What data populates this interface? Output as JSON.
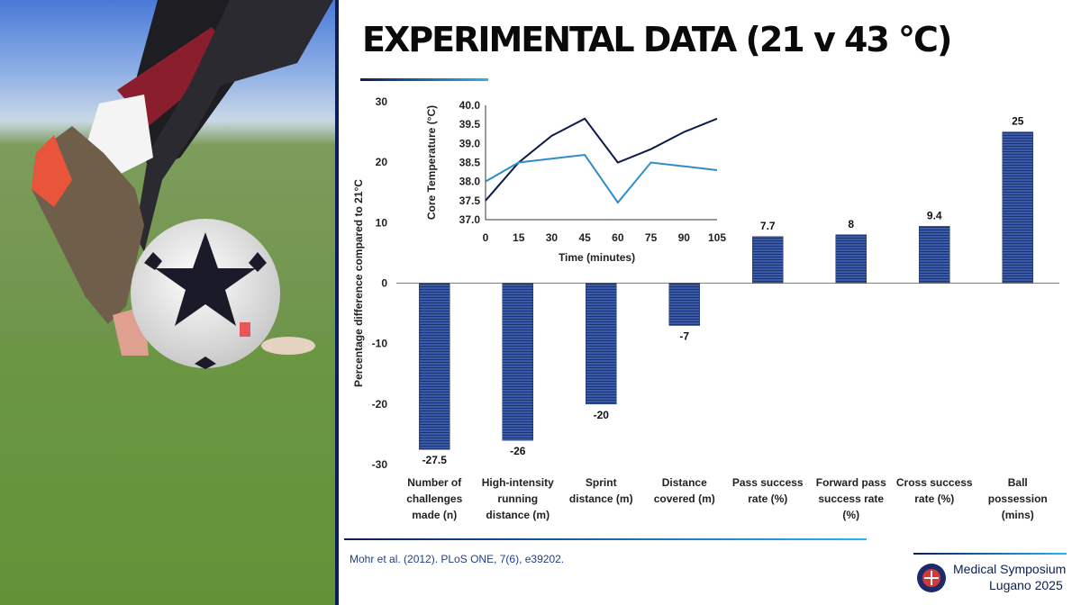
{
  "title": "EXPERIMENTAL DATA (21 v 43 °C)",
  "citation": "Mohr et al. (2012). PLoS ONE, 7(6), e39202.",
  "logo": {
    "line1": "Medical Symposium",
    "line2": "Lugano 2025"
  },
  "colors": {
    "bar": "#3a5aaa",
    "bar_dark": "#1e3470",
    "accent_dark": "#0b1e55",
    "accent_light": "#29b6e8",
    "line_dark": "#0d1b4c",
    "line_light": "#2e8cc8"
  },
  "chart_data": [
    {
      "type": "bar",
      "ylabel": "Percentage difference compared to 21°C",
      "ylim": [
        -30,
        30
      ],
      "yticks": [
        -30,
        -20,
        -10,
        0,
        10,
        20,
        30
      ],
      "categories": [
        [
          "Number of",
          "challenges",
          "made (n)"
        ],
        [
          "High-intensity",
          "running",
          "distance (m)"
        ],
        [
          "Sprint",
          "distance (m)"
        ],
        [
          "Distance",
          "covered (m)"
        ],
        [
          "Pass success",
          "rate (%)"
        ],
        [
          "Forward pass",
          "success rate",
          "(%)"
        ],
        [
          "Cross success",
          "rate (%)"
        ],
        [
          "Ball",
          "possession",
          "(mins)"
        ]
      ],
      "values": [
        -27.5,
        -26,
        -20,
        -7,
        7.7,
        8,
        9.4,
        25
      ],
      "value_labels": [
        "-27.5",
        "-26",
        "-20",
        "-7",
        "7.7",
        "8",
        "9.4",
        "25"
      ],
      "grid": false,
      "legend": "none"
    },
    {
      "type": "line",
      "xlabel": "Time (minutes)",
      "ylabel": "Core Temperature (°C)",
      "x": [
        0,
        15,
        30,
        45,
        60,
        75,
        90,
        105
      ],
      "ylim": [
        37.0,
        40.0
      ],
      "yticks": [
        "37.0",
        "37.5",
        "38.0",
        "38.5",
        "39.0",
        "39.5",
        "40.0"
      ],
      "series": [
        {
          "values": [
            37.5,
            38.5,
            39.2,
            39.65,
            38.5,
            38.85,
            39.3,
            39.65
          ]
        },
        {
          "values": [
            38.0,
            38.5,
            38.6,
            38.7,
            37.45,
            38.5,
            38.4,
            38.3
          ]
        }
      ],
      "grid": false,
      "legend": "none"
    }
  ]
}
